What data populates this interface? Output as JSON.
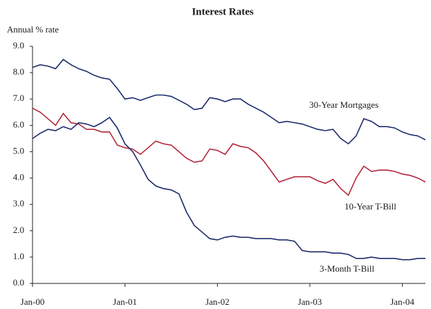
{
  "chart_data": {
    "type": "line",
    "title": "Interest Rates",
    "y_label": "Annual % rate",
    "categories": [
      "Jan-00",
      null,
      null,
      null,
      null,
      null,
      null,
      null,
      null,
      null,
      null,
      null,
      "Jan-01",
      null,
      null,
      null,
      null,
      null,
      null,
      null,
      null,
      null,
      null,
      null,
      "Jan-02",
      null,
      null,
      null,
      null,
      null,
      null,
      null,
      null,
      null,
      null,
      null,
      "Jan-03",
      null,
      null,
      null,
      null,
      null,
      null,
      null,
      null,
      null,
      null,
      null,
      "Jan-04",
      null,
      null,
      null
    ],
    "series": [
      {
        "name": "30-Year Mortgages",
        "color": "#1b2a6b",
        "values": [
          8.2,
          8.3,
          8.25,
          8.15,
          8.5,
          8.3,
          8.15,
          8.05,
          7.9,
          7.8,
          7.75,
          7.4,
          7.0,
          7.05,
          6.95,
          7.05,
          7.15,
          7.15,
          7.1,
          6.95,
          6.8,
          6.6,
          6.65,
          7.05,
          7.0,
          6.9,
          7.0,
          7.0,
          6.8,
          6.65,
          6.5,
          6.3,
          6.1,
          6.15,
          6.1,
          6.05,
          5.95,
          5.85,
          5.8,
          5.85,
          5.5,
          5.3,
          5.6,
          6.25,
          6.15,
          5.95,
          5.95,
          5.9,
          5.75,
          5.65,
          5.6,
          5.45
        ]
      },
      {
        "name": "10-Year T-Bill",
        "color": "#b3263a",
        "values": [
          6.65,
          6.5,
          6.25,
          6.0,
          6.45,
          6.1,
          6.05,
          5.85,
          5.85,
          5.75,
          5.75,
          5.25,
          5.15,
          5.1,
          4.9,
          5.15,
          5.4,
          5.3,
          5.25,
          5.0,
          4.75,
          4.6,
          4.65,
          5.1,
          5.05,
          4.9,
          5.3,
          5.2,
          5.15,
          4.95,
          4.65,
          4.25,
          3.85,
          3.95,
          4.05,
          4.05,
          4.05,
          3.9,
          3.8,
          3.95,
          3.6,
          3.35,
          4.0,
          4.45,
          4.25,
          4.3,
          4.3,
          4.25,
          4.15,
          4.1,
          4.0,
          3.85
        ]
      },
      {
        "name": "3-Month T-Bill",
        "color": "#1b2a6b",
        "values": [
          5.5,
          5.7,
          5.85,
          5.8,
          5.95,
          5.85,
          6.1,
          6.05,
          5.95,
          6.1,
          6.3,
          5.9,
          5.3,
          5.0,
          4.5,
          3.95,
          3.7,
          3.6,
          3.55,
          3.4,
          2.7,
          2.2,
          1.95,
          1.7,
          1.65,
          1.75,
          1.8,
          1.75,
          1.75,
          1.7,
          1.7,
          1.7,
          1.65,
          1.65,
          1.6,
          1.25,
          1.2,
          1.2,
          1.2,
          1.15,
          1.15,
          1.1,
          0.95,
          0.95,
          1.0,
          0.95,
          0.95,
          0.95,
          0.9,
          0.9,
          0.95,
          0.95
        ]
      }
    ],
    "ylim": [
      0,
      9
    ],
    "yticks": [
      {
        "value": 0,
        "label": "0.0"
      },
      {
        "value": 1,
        "label": "1.0"
      },
      {
        "value": 2,
        "label": "2.0"
      },
      {
        "value": 3,
        "label": "3.0"
      },
      {
        "value": 4,
        "label": "4.0"
      },
      {
        "value": 5,
        "label": "5.0"
      },
      {
        "value": 6,
        "label": "6.0"
      },
      {
        "value": 7,
        "label": "7.0"
      },
      {
        "value": 8,
        "label": "8.0"
      },
      {
        "value": 9,
        "label": "9.0"
      }
    ],
    "grid": false
  }
}
